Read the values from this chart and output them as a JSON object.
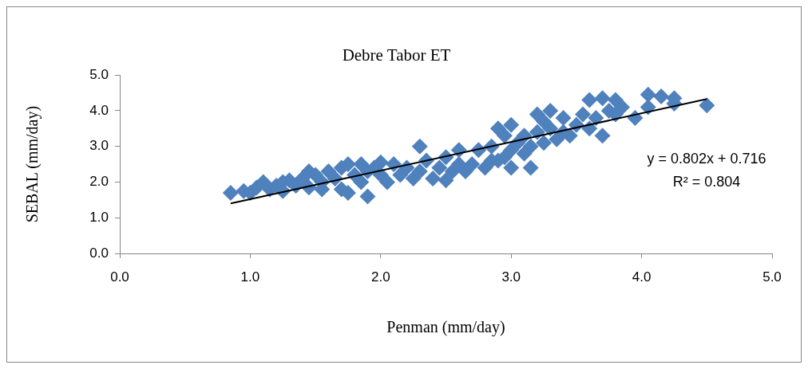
{
  "chart_data": {
    "type": "scatter",
    "title": "Debre Tabor ET",
    "xlabel": "Penman (mm/day)",
    "ylabel": "SEBAL (mm/day)",
    "xlim": [
      0,
      5
    ],
    "ylim": [
      0,
      5
    ],
    "xticks": [
      {
        "value": 0,
        "label": "0.0"
      },
      {
        "value": 1,
        "label": "1.0"
      },
      {
        "value": 2,
        "label": "2.0"
      },
      {
        "value": 3,
        "label": "3.0"
      },
      {
        "value": 4,
        "label": "4.0"
      },
      {
        "value": 5,
        "label": "5.0"
      }
    ],
    "yticks": [
      {
        "value": 0,
        "label": "0.0"
      },
      {
        "value": 1,
        "label": "1.0"
      },
      {
        "value": 2,
        "label": "2.0"
      },
      {
        "value": 3,
        "label": "3.0"
      },
      {
        "value": 4,
        "label": "4.0"
      },
      {
        "value": 5,
        "label": "5.0"
      }
    ],
    "grid": false,
    "legend": false,
    "annotations": [
      "y = 0.802x + 0.716",
      "R² = 0.804"
    ],
    "series": [
      {
        "type": "scatter",
        "marker": "diamond",
        "color": "#4f81bd",
        "x": [
          0.85,
          0.95,
          1.0,
          1.05,
          1.1,
          1.15,
          1.2,
          1.25,
          1.25,
          1.3,
          1.35,
          1.4,
          1.45,
          1.45,
          1.5,
          1.55,
          1.55,
          1.6,
          1.65,
          1.7,
          1.7,
          1.75,
          1.75,
          1.8,
          1.85,
          1.85,
          1.9,
          1.9,
          1.95,
          2.0,
          2.0,
          2.05,
          2.1,
          2.15,
          2.2,
          2.25,
          2.3,
          2.3,
          2.35,
          2.4,
          2.45,
          2.5,
          2.5,
          2.55,
          2.6,
          2.6,
          2.65,
          2.7,
          2.75,
          2.8,
          2.85,
          2.85,
          2.9,
          2.9,
          2.95,
          2.95,
          3.0,
          3.0,
          3.0,
          3.05,
          3.1,
          3.1,
          3.15,
          3.15,
          3.2,
          3.2,
          3.25,
          3.25,
          3.3,
          3.3,
          3.35,
          3.4,
          3.4,
          3.45,
          3.5,
          3.55,
          3.6,
          3.6,
          3.65,
          3.7,
          3.7,
          3.75,
          3.8,
          3.8,
          3.85,
          3.95,
          4.05,
          4.05,
          4.15,
          4.25,
          4.25,
          4.5
        ],
        "values": [
          1.7,
          1.75,
          1.7,
          1.85,
          2.0,
          1.8,
          1.9,
          2.0,
          1.75,
          2.05,
          1.9,
          2.1,
          2.3,
          1.85,
          2.2,
          2.0,
          1.8,
          2.3,
          2.1,
          2.4,
          1.8,
          2.5,
          1.7,
          2.2,
          2.5,
          2.0,
          1.6,
          2.3,
          2.4,
          2.2,
          2.55,
          2.0,
          2.5,
          2.2,
          2.4,
          2.1,
          3.0,
          2.3,
          2.6,
          2.1,
          2.4,
          2.7,
          2.05,
          2.3,
          2.5,
          2.9,
          2.3,
          2.5,
          2.9,
          2.4,
          2.6,
          3.0,
          3.5,
          2.6,
          3.3,
          2.7,
          2.4,
          3.6,
          2.9,
          3.1,
          2.8,
          3.3,
          2.4,
          3.0,
          3.9,
          3.4,
          3.1,
          3.7,
          3.5,
          4.0,
          3.2,
          3.8,
          3.4,
          3.3,
          3.6,
          3.9,
          4.3,
          3.5,
          3.8,
          4.35,
          3.3,
          4.0,
          4.3,
          3.9,
          4.1,
          3.8,
          4.45,
          4.1,
          4.4,
          4.2,
          4.35,
          4.15
        ]
      },
      {
        "type": "line",
        "marker": "none",
        "color": "#000000",
        "x": [
          0.85,
          4.5
        ],
        "values": [
          1.4,
          4.33
        ]
      }
    ]
  }
}
